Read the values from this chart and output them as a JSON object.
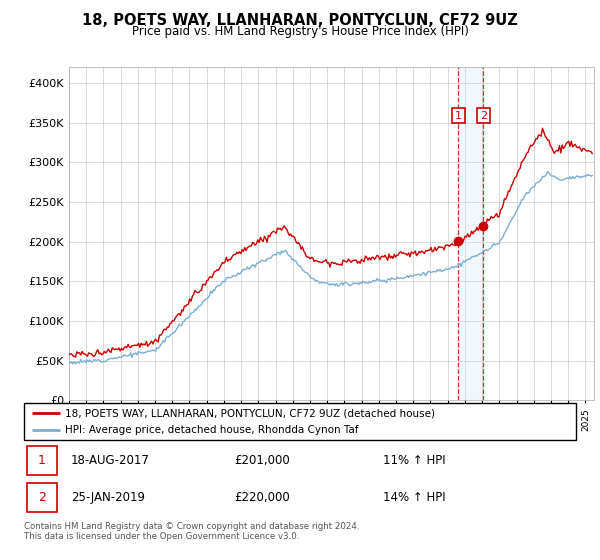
{
  "title": "18, POETS WAY, LLANHARAN, PONTYCLUN, CF72 9UZ",
  "subtitle": "Price paid vs. HM Land Registry's House Price Index (HPI)",
  "legend_line1": "18, POETS WAY, LLANHARAN, PONTYCLUN, CF72 9UZ (detached house)",
  "legend_line2": "HPI: Average price, detached house, Rhondda Cynon Taf",
  "transaction1_date": "18-AUG-2017",
  "transaction1_price": "£201,000",
  "transaction1_hpi": "11% ↑ HPI",
  "transaction2_date": "25-JAN-2019",
  "transaction2_price": "£220,000",
  "transaction2_hpi": "14% ↑ HPI",
  "footer": "Contains HM Land Registry data © Crown copyright and database right 2024.\nThis data is licensed under the Open Government Licence v3.0.",
  "hpi_color": "#7bafd4",
  "price_color": "#cc0000",
  "shade_color": "#cce0f0",
  "marker1_date_x": 2017.62,
  "marker2_date_x": 2019.07,
  "marker1_price_y": 201000,
  "marker2_price_y": 220000,
  "ylim_min": 0,
  "ylim_max": 420000,
  "xlim_min": 1995.0,
  "xlim_max": 2025.5,
  "background_color": "#ffffff",
  "grid_color": "#cccccc"
}
